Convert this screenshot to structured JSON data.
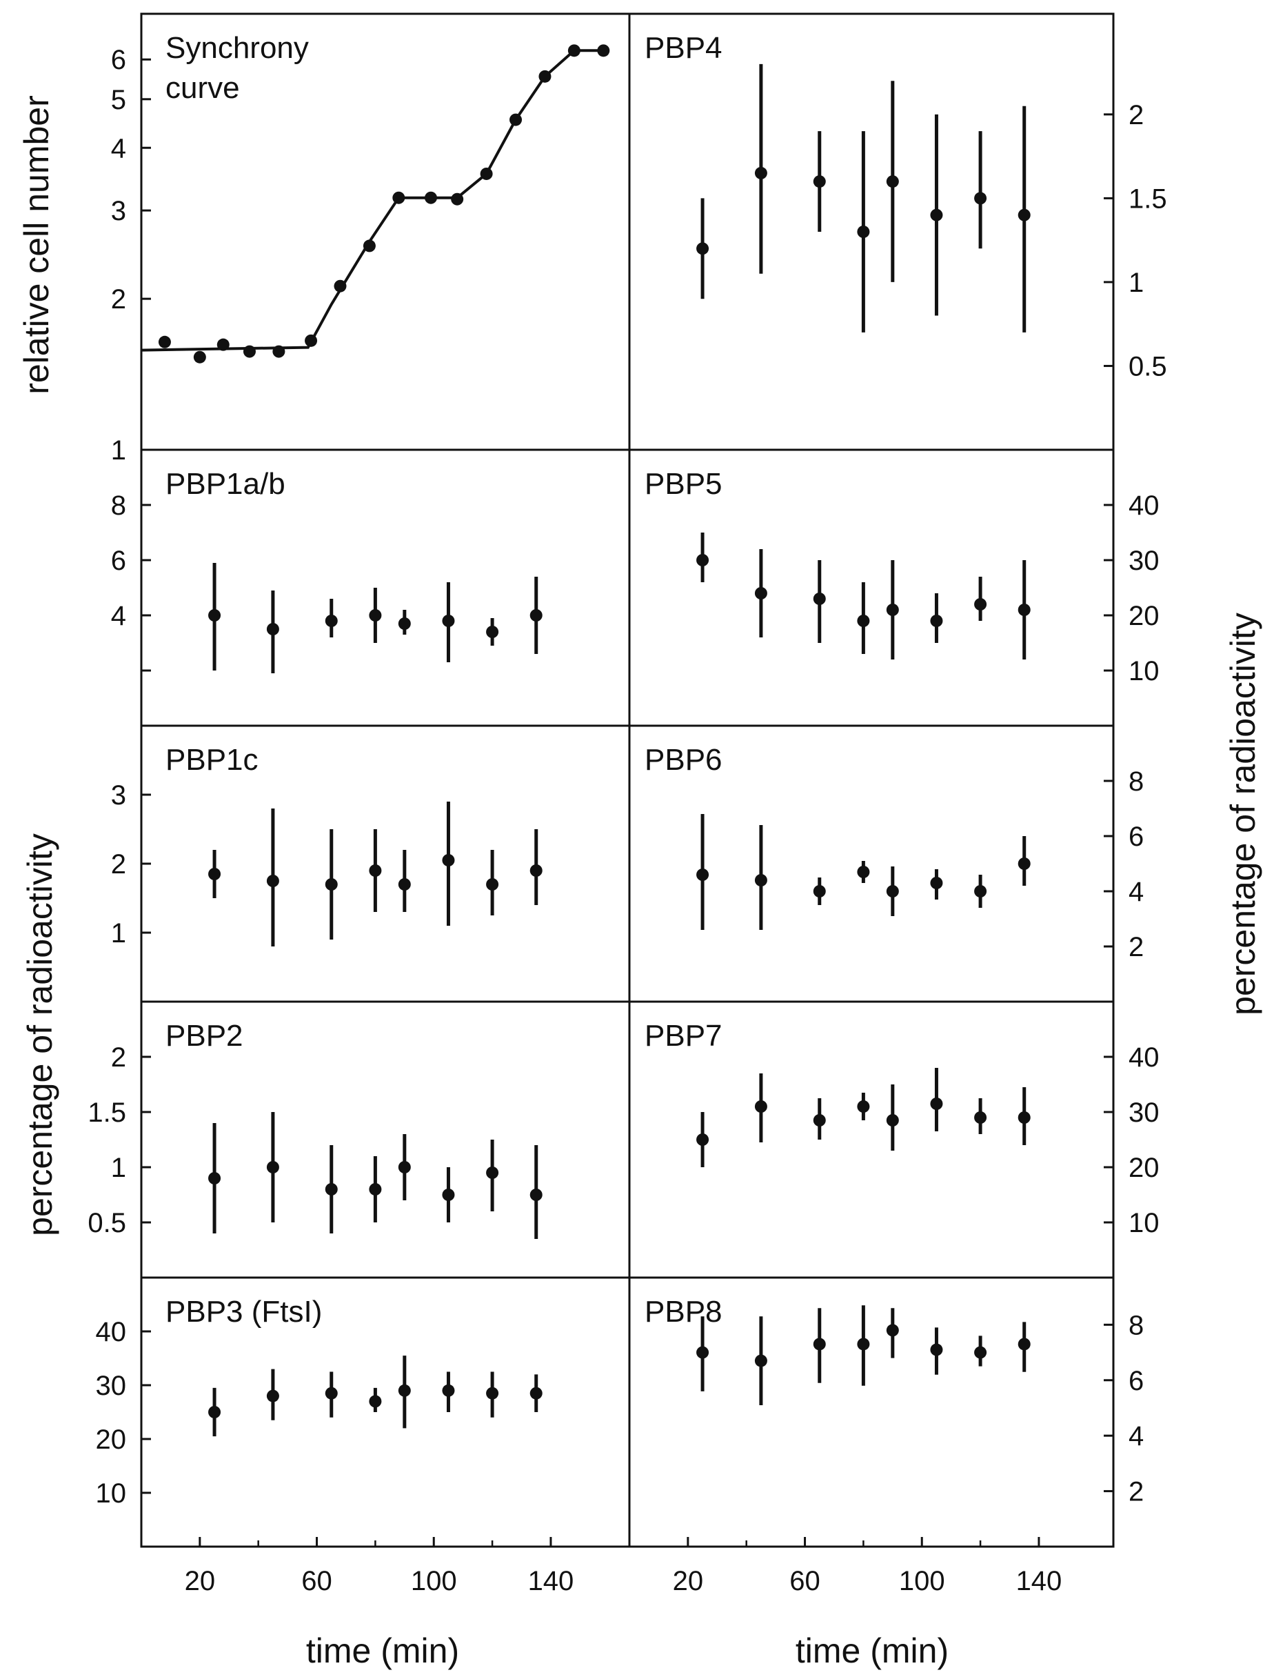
{
  "figure": {
    "xlabel_left": "time (min)",
    "xlabel_right": "time (min)",
    "ylabel_top_left": "relative cell number",
    "ylabel_left": "percentage of radioactivity",
    "ylabel_right": "percentage of radioactivity",
    "x_ticks": [
      20,
      60,
      100,
      140
    ],
    "xlim": [
      0,
      165
    ]
  },
  "chart_data": [
    {
      "id": "synchrony",
      "type": "line",
      "title": "Synchrony curve",
      "title_lines": [
        "Synchrony",
        "curve"
      ],
      "column": "left",
      "row": 0,
      "axis_side": "left",
      "log": true,
      "ylim": [
        1,
        7.4
      ],
      "yticks": [
        1,
        2,
        3,
        4,
        5,
        6
      ],
      "series": [
        {
          "points": [
            [
              8,
              1.64
            ],
            [
              20,
              1.53
            ],
            [
              28,
              1.62
            ],
            [
              37,
              1.57
            ],
            [
              47,
              1.57
            ],
            [
              58,
              1.65
            ],
            [
              68,
              2.12
            ],
            [
              78,
              2.55
            ],
            [
              88,
              3.18
            ],
            [
              99,
              3.18
            ],
            [
              108,
              3.16
            ],
            [
              118,
              3.55
            ],
            [
              128,
              4.55
            ],
            [
              138,
              5.55
            ],
            [
              148,
              6.25
            ],
            [
              158,
              6.25
            ]
          ],
          "line": [
            [
              0,
              1.58
            ],
            [
              57,
              1.6
            ],
            [
              65,
              1.95
            ],
            [
              78,
              2.6
            ],
            [
              88,
              3.18
            ],
            [
              108,
              3.18
            ],
            [
              118,
              3.55
            ],
            [
              128,
              4.55
            ],
            [
              138,
              5.55
            ],
            [
              148,
              6.25
            ],
            [
              158,
              6.25
            ]
          ]
        }
      ]
    },
    {
      "id": "pbp4",
      "type": "scatter",
      "title": "PBP4",
      "column": "right",
      "row": 0,
      "axis_side": "right",
      "ylim": [
        0,
        2.6
      ],
      "yticks": [
        0.5,
        1,
        1.5,
        2
      ],
      "ytick_labels": [
        "0.5",
        "1",
        "1.5",
        "2"
      ],
      "series": [
        {
          "x": [
            25,
            45,
            65,
            80,
            90,
            105,
            120,
            135
          ],
          "y": [
            1.2,
            1.65,
            1.6,
            1.3,
            1.6,
            1.4,
            1.5,
            1.4
          ],
          "err_low": [
            0.9,
            1.05,
            1.3,
            0.7,
            1.0,
            0.8,
            1.2,
            0.7
          ],
          "err_high": [
            1.5,
            2.3,
            1.9,
            1.9,
            2.2,
            2.0,
            1.9,
            2.05
          ]
        }
      ]
    },
    {
      "id": "pbp1ab",
      "type": "scatter",
      "title": "PBP1a/b",
      "column": "left",
      "row": 1,
      "axis_side": "left",
      "ylim": [
        0,
        10
      ],
      "yticks": [
        2,
        4,
        6,
        8
      ],
      "ytick_labels": [
        "",
        "4",
        "6",
        "8"
      ],
      "series": [
        {
          "x": [
            25,
            45,
            65,
            80,
            90,
            105,
            120,
            135
          ],
          "y": [
            4.0,
            3.5,
            3.8,
            4.0,
            3.7,
            3.8,
            3.4,
            4.0
          ],
          "err_low": [
            2.0,
            1.9,
            3.2,
            3.0,
            3.3,
            2.3,
            2.9,
            2.6
          ],
          "err_high": [
            5.9,
            4.9,
            4.6,
            5.0,
            4.2,
            5.2,
            3.9,
            5.4
          ]
        }
      ]
    },
    {
      "id": "pbp5",
      "type": "scatter",
      "title": "PBP5",
      "column": "right",
      "row": 1,
      "axis_side": "right",
      "ylim": [
        0,
        50
      ],
      "yticks": [
        10,
        20,
        30,
        40
      ],
      "ytick_labels": [
        "10",
        "20",
        "30",
        "40"
      ],
      "series": [
        {
          "x": [
            25,
            45,
            65,
            80,
            90,
            105,
            120,
            135
          ],
          "y": [
            30,
            24,
            23,
            19,
            21,
            19,
            22,
            21
          ],
          "err_low": [
            26,
            16,
            15,
            13,
            12,
            15,
            19,
            12
          ],
          "err_high": [
            35,
            32,
            30,
            26,
            30,
            24,
            27,
            30
          ]
        }
      ]
    },
    {
      "id": "pbp1c",
      "type": "scatter",
      "title": "PBP1c",
      "column": "left",
      "row": 2,
      "axis_side": "left",
      "ylim": [
        0,
        4
      ],
      "yticks": [
        1,
        2,
        3
      ],
      "ytick_labels": [
        "1",
        "2",
        "3"
      ],
      "series": [
        {
          "x": [
            25,
            45,
            65,
            80,
            90,
            105,
            120,
            135
          ],
          "y": [
            1.85,
            1.75,
            1.7,
            1.9,
            1.7,
            2.05,
            1.7,
            1.9
          ],
          "err_low": [
            1.5,
            0.8,
            0.9,
            1.3,
            1.3,
            1.1,
            1.25,
            1.4
          ],
          "err_high": [
            2.2,
            2.8,
            2.5,
            2.5,
            2.2,
            2.9,
            2.2,
            2.5
          ]
        }
      ]
    },
    {
      "id": "pbp6",
      "type": "scatter",
      "title": "PBP6",
      "column": "right",
      "row": 2,
      "axis_side": "right",
      "ylim": [
        0,
        10
      ],
      "yticks": [
        2,
        4,
        6,
        8
      ],
      "ytick_labels": [
        "2",
        "4",
        "6",
        "8"
      ],
      "series": [
        {
          "x": [
            25,
            45,
            65,
            80,
            90,
            105,
            120,
            135
          ],
          "y": [
            4.6,
            4.4,
            4.0,
            4.7,
            4.0,
            4.3,
            4.0,
            5.0
          ],
          "err_low": [
            2.6,
            2.6,
            3.5,
            4.3,
            3.1,
            3.7,
            3.4,
            4.2
          ],
          "err_high": [
            6.8,
            6.4,
            4.5,
            5.1,
            4.9,
            4.8,
            4.6,
            6.0
          ]
        }
      ]
    },
    {
      "id": "pbp2",
      "type": "scatter",
      "title": "PBP2",
      "column": "left",
      "row": 3,
      "axis_side": "left",
      "ylim": [
        0,
        2.5
      ],
      "yticks": [
        0.5,
        1,
        1.5,
        2
      ],
      "ytick_labels": [
        "0.5",
        "1",
        "1.5",
        "2"
      ],
      "series": [
        {
          "x": [
            25,
            45,
            65,
            80,
            90,
            105,
            120,
            135
          ],
          "y": [
            0.9,
            1.0,
            0.8,
            0.8,
            1.0,
            0.75,
            0.95,
            0.75
          ],
          "err_low": [
            0.4,
            0.5,
            0.4,
            0.5,
            0.7,
            0.5,
            0.6,
            0.35
          ],
          "err_high": [
            1.4,
            1.5,
            1.2,
            1.1,
            1.3,
            1.0,
            1.25,
            1.2
          ]
        }
      ]
    },
    {
      "id": "pbp7",
      "type": "scatter",
      "title": "PBP7",
      "column": "right",
      "row": 3,
      "axis_side": "right",
      "ylim": [
        0,
        50
      ],
      "yticks": [
        10,
        20,
        30,
        40
      ],
      "ytick_labels": [
        "10",
        "20",
        "30",
        "40"
      ],
      "series": [
        {
          "x": [
            25,
            45,
            65,
            80,
            90,
            105,
            120,
            135
          ],
          "y": [
            25,
            31,
            28.5,
            31,
            28.5,
            31.5,
            29,
            29
          ],
          "err_low": [
            20,
            24.5,
            25,
            28.5,
            23,
            26.5,
            26,
            24
          ],
          "err_high": [
            30,
            37,
            32.5,
            33.5,
            35,
            38,
            32.5,
            34.5
          ]
        }
      ]
    },
    {
      "id": "pbp3",
      "type": "scatter",
      "title": "PBP3 (FtsI)",
      "column": "left",
      "row": 4,
      "axis_side": "left",
      "ylim": [
        0,
        50
      ],
      "yticks": [
        10,
        20,
        30,
        40
      ],
      "ytick_labels": [
        "10",
        "20",
        "30",
        "40"
      ],
      "series": [
        {
          "x": [
            25,
            45,
            65,
            80,
            90,
            105,
            120,
            135
          ],
          "y": [
            25,
            28,
            28.5,
            27,
            29,
            29,
            28.5,
            28.5
          ],
          "err_low": [
            20.5,
            23.5,
            24,
            25,
            22,
            25,
            24,
            25
          ],
          "err_high": [
            29.5,
            33,
            32.5,
            29.5,
            35.5,
            32.5,
            32.5,
            32
          ]
        }
      ]
    },
    {
      "id": "pbp8",
      "type": "scatter",
      "title": "PBP8",
      "column": "right",
      "row": 4,
      "axis_side": "right",
      "ylim": [
        0,
        9.7
      ],
      "yticks": [
        2,
        4,
        6,
        8
      ],
      "ytick_labels": [
        "2",
        "4",
        "6",
        "8"
      ],
      "series": [
        {
          "x": [
            25,
            45,
            65,
            80,
            90,
            105,
            120,
            135
          ],
          "y": [
            7.0,
            6.7,
            7.3,
            7.3,
            7.8,
            7.1,
            7.0,
            7.3
          ],
          "err_low": [
            5.6,
            5.1,
            5.9,
            5.8,
            6.8,
            6.2,
            6.5,
            6.3
          ],
          "err_high": [
            8.3,
            8.3,
            8.6,
            8.7,
            8.6,
            7.9,
            7.6,
            8.1
          ]
        }
      ]
    }
  ]
}
